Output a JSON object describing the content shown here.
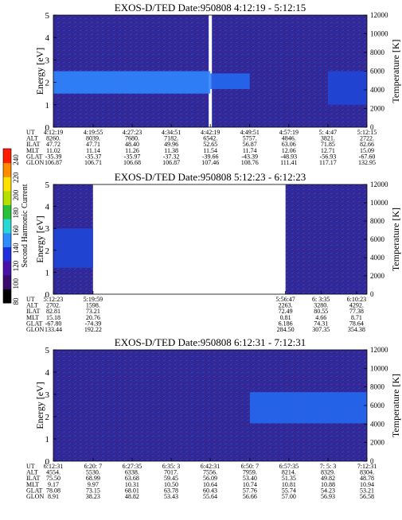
{
  "colorbar": {
    "label": "Second Harmonic Current",
    "ticks": [
      "80",
      "100",
      "120",
      "140",
      "160",
      "180",
      "200",
      "220",
      "240"
    ],
    "colors": [
      "#000000",
      "#3a0b6e",
      "#4a11a8",
      "#1f2fe0",
      "#2f8cff",
      "#29d8d4",
      "#28c238",
      "#b6e000",
      "#ffe100",
      "#ff8c00",
      "#ff1c00"
    ]
  },
  "panels": [
    {
      "title": "EXOS-D/TED   Date:950808   4:12:19 - 5:12:15",
      "ylabel_left": "Energy [eV]",
      "ylabel_right": "Temperature [K]",
      "yticks_left": [
        "0",
        "1",
        "2",
        "3",
        "4",
        "5"
      ],
      "yticks_right": [
        "0",
        "2000",
        "4000",
        "6000",
        "8000",
        "10000",
        "12000"
      ],
      "row_labels": [
        "UT",
        "ALT",
        "ILAT",
        "MLT",
        "GLAT",
        "GLON"
      ],
      "columns": [
        [
          "4:12:19",
          "8260.",
          "47.72",
          "11.02",
          "-35.39",
          "106.87"
        ],
        [
          "4:19:55",
          "8039.",
          "47.71",
          "11.14",
          "-35.37",
          "106.71"
        ],
        [
          "4:27:23",
          "7680.",
          "48.40",
          "11.26",
          "-35.97",
          "106.68"
        ],
        [
          "4:34:51",
          "7182.",
          "49.96",
          "11.38",
          "-37.32",
          "106.87"
        ],
        [
          "4:42:19",
          "6542.",
          "52.65",
          "11.54",
          "-39.66",
          "107.46"
        ],
        [
          "4:49:51",
          "5757.",
          "56.87",
          "11.74",
          "-43.39",
          "108.76"
        ],
        [
          "4:57:19",
          "4846.",
          "63.06",
          "12.06",
          "-48.93",
          "111.41"
        ],
        [
          "5: 4:47",
          "3821.",
          "71.85",
          "12.71",
          "-56.93",
          "117.17"
        ],
        [
          "5:12:15",
          "2722.",
          "82.66",
          "15.09",
          "-67.60",
          "132.95"
        ]
      ],
      "chart_data": {
        "type": "heatmap",
        "x_label": "UT",
        "xlim": [
          "4:12:19",
          "5:12:15"
        ],
        "y_label": "Energy [eV]",
        "ylim": [
          0,
          5
        ],
        "y2_label": "Temperature [K]",
        "y2lim": [
          0,
          12000
        ],
        "bands": [
          {
            "x_start": "4:12:19",
            "x_end": "4:42:19",
            "energy_low": 1.5,
            "energy_high": 2.5,
            "level": 150
          },
          {
            "x_start": "4:42:19",
            "x_end": "4:49:51",
            "energy_low": 1.7,
            "energy_high": 2.4,
            "level": 135
          },
          {
            "x_start": "5: 4:47",
            "x_end": "5:12:15",
            "energy_low": 1.0,
            "energy_high": 2.5,
            "level": 125
          }
        ],
        "gaps": [
          {
            "x_start": "4:42:19",
            "x_end": "4:42:19"
          }
        ]
      }
    },
    {
      "title": "EXOS-D/TED   Date:950808   5:12:23 - 6:12:23",
      "ylabel_left": "Energy [eV]",
      "ylabel_right": "Temperature [K]",
      "yticks_left": [
        "0",
        "1",
        "2",
        "3",
        "4",
        "5"
      ],
      "yticks_right": [
        "0",
        "2000",
        "4000",
        "6000",
        "8000",
        "10000",
        "12000"
      ],
      "row_labels": [
        "UT",
        "ALT",
        "ILAT",
        "MLT",
        "GLAT",
        "GLON"
      ],
      "columns": [
        [
          "5:12:23",
          "2702.",
          "82.81",
          "15.18",
          "-67.80",
          "133.44"
        ],
        [
          "5:19:59",
          "1598.",
          "73.21",
          "20.76",
          "-74.39",
          "192.22"
        ],
        [
          "5:56:47",
          "2263.",
          "72.49",
          "0.81",
          "6.186",
          "284.50"
        ],
        [
          "6: 3:35",
          "3280.",
          "80.55",
          "4.66",
          "74.31",
          "307.35"
        ],
        [
          "6:10:23",
          "4292.",
          "77.38",
          "8.71",
          "78.64",
          "354.38"
        ]
      ],
      "chart_data": {
        "type": "heatmap",
        "x_label": "UT",
        "xlim": [
          "5:12:23",
          "6:12:23"
        ],
        "y_label": "Energy [eV]",
        "ylim": [
          0,
          5
        ],
        "y2_label": "Temperature [K]",
        "y2lim": [
          0,
          12000
        ],
        "bands": [
          {
            "x_start": "5:12:23",
            "x_end": "5:19:59",
            "energy_low": 1.2,
            "energy_high": 3.0,
            "level": 130
          }
        ],
        "gaps": [
          {
            "x_start": "5:19:59",
            "x_end": "5:56:47"
          }
        ]
      }
    },
    {
      "title": "EXOS-D/TED   Date:950808   6:12:31 - 7:12:31",
      "ylabel_left": "Energy [eV]",
      "ylabel_right": "Temperature [K]",
      "yticks_left": [
        "0",
        "1",
        "2",
        "3",
        "4",
        "5"
      ],
      "yticks_right": [
        "0",
        "2000",
        "4000",
        "6000",
        "8000",
        "10000",
        "12000"
      ],
      "row_labels": [
        "UT",
        "ALT",
        "ILAT",
        "MLT",
        "GLAT",
        "GLON"
      ],
      "columns": [
        [
          "6:12:31",
          "4554.",
          "75.50",
          "9.17",
          "78.08",
          "8.91"
        ],
        [
          "6:20: 7",
          "5530.",
          "68.99",
          "9.97",
          "73.15",
          "38.23"
        ],
        [
          "6:27:35",
          "6338.",
          "63.68",
          "10.31",
          "68.01",
          "48.82"
        ],
        [
          "6:35: 3",
          "7017.",
          "59.45",
          "10.50",
          "63.78",
          "53.43"
        ],
        [
          "6:42:31",
          "7556.",
          "56.09",
          "10.64",
          "60.43",
          "55.64"
        ],
        [
          "6:50: 7",
          "7959.",
          "53.40",
          "10.74",
          "57.76",
          "56.66"
        ],
        [
          "6:57:35",
          "8214.",
          "51.35",
          "10.81",
          "55.74",
          "57.00"
        ],
        [
          "7: 5: 3",
          "8329.",
          "49.82",
          "10.88",
          "54.23",
          "56.93"
        ],
        [
          "7:12:31",
          "8304.",
          "48.78",
          "10.94",
          "53.21",
          "56.58"
        ]
      ],
      "chart_data": {
        "type": "heatmap",
        "x_label": "UT",
        "xlim": [
          "6:12:31",
          "7:12:31"
        ],
        "y_label": "Energy [eV]",
        "ylim": [
          0,
          5
        ],
        "y2_label": "Temperature [K]",
        "y2lim": [
          0,
          12000
        ],
        "bands": [
          {
            "x_start": "6:50: 7",
            "x_end": "7:12:31",
            "energy_low": 1.7,
            "energy_high": 3.1,
            "level": 140
          }
        ],
        "gaps": []
      }
    }
  ]
}
